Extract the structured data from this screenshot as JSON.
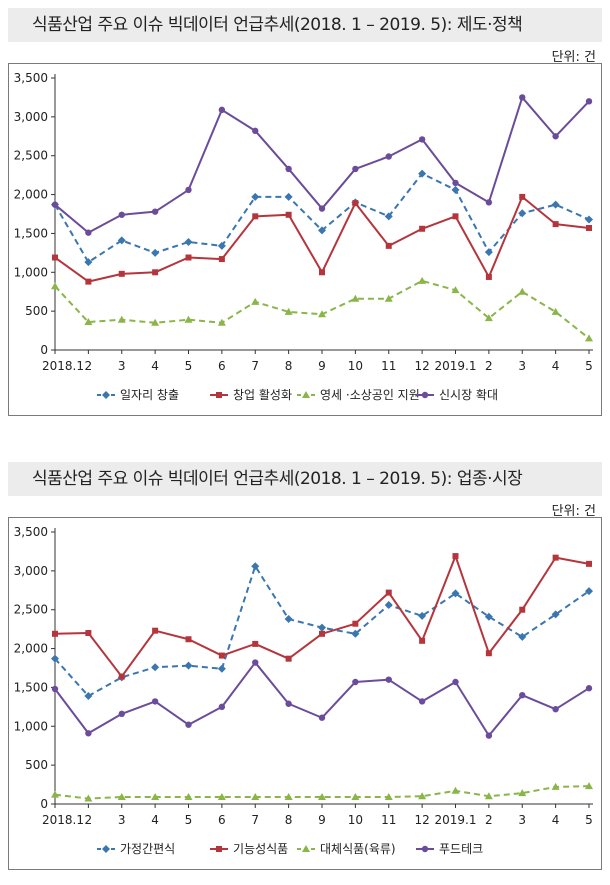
{
  "chart_data": [
    {
      "type": "line",
      "title": "식품산업 주요 이슈 빅데이터 언급추세(2018. 1 – 2019. 5): 제도·정책",
      "unit": "단위: 건",
      "categories": [
        "2018.1",
        "2",
        "3",
        "4",
        "5",
        "6",
        "7",
        "8",
        "9",
        "10",
        "11",
        "12",
        "2019.1",
        "2",
        "3",
        "4",
        "5"
      ],
      "ylim": [
        0,
        3500
      ],
      "yticks": [
        "0",
        "500",
        "1,000",
        "1,500",
        "2,000",
        "2,500",
        "3,000",
        "3,500"
      ],
      "legend_position": "bottom",
      "grid": false,
      "series": [
        {
          "name": "일자리 창출",
          "color": "#3a76b0",
          "marker": "diamond",
          "dash": true,
          "values": [
            1870,
            1130,
            1410,
            1250,
            1390,
            1340,
            1970,
            1970,
            1540,
            1900,
            1720,
            2270,
            2060,
            1260,
            1760,
            1870,
            1680
          ]
        },
        {
          "name": "창업 활성화",
          "color": "#b5353d",
          "marker": "square",
          "dash": false,
          "values": [
            1190,
            880,
            980,
            1000,
            1190,
            1170,
            1720,
            1740,
            1000,
            1890,
            1340,
            1560,
            1720,
            940,
            1970,
            1620,
            1570
          ]
        },
        {
          "name": "영세 ·소상공인 지원",
          "color": "#8ab549",
          "marker": "triangle",
          "dash": true,
          "values": [
            820,
            360,
            390,
            350,
            390,
            350,
            620,
            490,
            460,
            660,
            660,
            890,
            770,
            410,
            750,
            490,
            150
          ]
        },
        {
          "name": "신시장 확대",
          "color": "#6b4c9a",
          "marker": "circle",
          "dash": false,
          "values": [
            1870,
            1510,
            1740,
            1780,
            2060,
            3090,
            2820,
            2330,
            1820,
            2330,
            2490,
            2710,
            2150,
            1900,
            3250,
            2750,
            3200
          ]
        }
      ]
    },
    {
      "type": "line",
      "title": "식품산업 주요 이슈 빅데이터 언급추세(2018. 1 – 2019. 5): 업종·시장",
      "unit": "단위: 건",
      "categories": [
        "2018.1",
        "2",
        "3",
        "4",
        "5",
        "6",
        "7",
        "8",
        "9",
        "10",
        "11",
        "12",
        "2019.1",
        "2",
        "3",
        "4",
        "5"
      ],
      "ylim": [
        0,
        3500
      ],
      "yticks": [
        "0",
        "500",
        "1,000",
        "1,500",
        "2,000",
        "2,500",
        "3,000",
        "3,500"
      ],
      "legend_position": "bottom",
      "grid": false,
      "series": [
        {
          "name": "가정간편식",
          "color": "#3a76b0",
          "marker": "diamond",
          "dash": true,
          "values": [
            1870,
            1390,
            1630,
            1760,
            1780,
            1740,
            3060,
            2380,
            2270,
            2190,
            2560,
            2420,
            2710,
            2410,
            2150,
            2440,
            2740
          ]
        },
        {
          "name": "기능성식품",
          "color": "#b5353d",
          "marker": "square",
          "dash": false,
          "values": [
            2190,
            2200,
            1640,
            2230,
            2120,
            1910,
            2060,
            1870,
            2190,
            2320,
            2720,
            2100,
            3190,
            1940,
            2500,
            3170,
            3090
          ]
        },
        {
          "name": "대체식품(육류)",
          "color": "#8ab549",
          "marker": "triangle",
          "dash": true,
          "values": [
            120,
            70,
            90,
            90,
            90,
            90,
            90,
            90,
            90,
            90,
            90,
            100,
            170,
            100,
            140,
            220,
            230
          ]
        },
        {
          "name": "푸드테크",
          "color": "#6b4c9a",
          "marker": "circle",
          "dash": false,
          "values": [
            1480,
            910,
            1160,
            1320,
            1020,
            1250,
            1820,
            1290,
            1110,
            1570,
            1600,
            1320,
            1570,
            880,
            1400,
            1220,
            1490
          ]
        }
      ]
    }
  ]
}
